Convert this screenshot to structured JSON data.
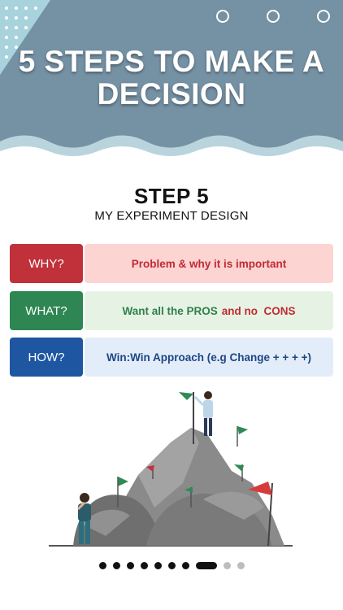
{
  "banner": {
    "title": "5 STEPS TO MAKE A DECISION"
  },
  "step": {
    "heading": "STEP 5",
    "subheading": "MY EXPERIMENT DESIGN"
  },
  "rows": [
    {
      "label": "WHY?",
      "text": "Problem & why it is important"
    },
    {
      "label": "WHAT?",
      "text_main": "Want all the PROS",
      "text_accent": "and no  CONS"
    },
    {
      "label": "HOW?",
      "text": "Win:Win Approach (e.g Change + + + +)"
    }
  ],
  "pager": {
    "total": 10,
    "current": 8
  },
  "colors": {
    "banner": "#7591a4",
    "why": "#c0313a",
    "what": "#2e8653",
    "how": "#1e56a2"
  }
}
